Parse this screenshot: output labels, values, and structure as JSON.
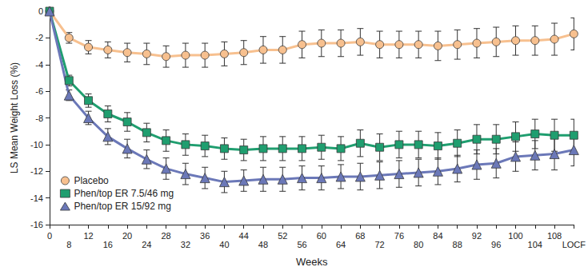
{
  "chart_data": {
    "type": "line",
    "x_label": "Weeks",
    "y_label": "LS Mean Weight Loss (%)",
    "categories": [
      "0",
      "8",
      "12",
      "16",
      "20",
      "24",
      "28",
      "32",
      "36",
      "40",
      "44",
      "48",
      "52",
      "56",
      "60",
      "64",
      "68",
      "72",
      "76",
      "80",
      "84",
      "88",
      "92",
      "96",
      "100",
      "104",
      "108",
      "LOCF"
    ],
    "ylim": [
      -16,
      0
    ],
    "yticks": [
      -16,
      -14,
      -12,
      -10,
      -8,
      -6,
      -4,
      -2,
      0
    ],
    "grid": false,
    "legend": "lower left",
    "series": [
      {
        "name": "Placebo",
        "color": "#f7c08f",
        "marker": "circle",
        "values": [
          0,
          -2.0,
          -2.7,
          -2.9,
          -3.1,
          -3.2,
          -3.4,
          -3.3,
          -3.3,
          -3.2,
          -3.1,
          -2.9,
          -2.9,
          -2.5,
          -2.4,
          -2.4,
          -2.3,
          -2.5,
          -2.5,
          -2.5,
          -2.6,
          -2.5,
          -2.4,
          -2.3,
          -2.2,
          -2.2,
          -2.1,
          -1.7
        ],
        "errors": [
          0,
          0.4,
          0.5,
          0.6,
          0.7,
          0.8,
          0.8,
          0.9,
          0.9,
          0.9,
          0.9,
          1.0,
          1.0,
          1.0,
          1.0,
          1.0,
          1.0,
          1.0,
          1.0,
          1.0,
          1.1,
          1.1,
          1.1,
          1.1,
          1.1,
          1.1,
          1.2,
          1.2
        ]
      },
      {
        "name": "Phen/top ER 7.5/46 mg",
        "color": "#1f9e6f",
        "marker": "square",
        "values": [
          0,
          -5.2,
          -6.7,
          -7.7,
          -8.3,
          -9.1,
          -9.7,
          -10.0,
          -10.1,
          -10.3,
          -10.4,
          -10.3,
          -10.3,
          -10.3,
          -10.2,
          -10.3,
          -9.9,
          -10.2,
          -10.0,
          -10.0,
          -10.1,
          -9.9,
          -9.6,
          -9.6,
          -9.4,
          -9.2,
          -9.3,
          -9.3
        ],
        "errors": [
          0,
          0.4,
          0.5,
          0.6,
          0.7,
          0.7,
          0.8,
          0.8,
          0.8,
          0.8,
          0.8,
          0.9,
          0.9,
          0.9,
          0.9,
          0.9,
          1.0,
          1.0,
          1.0,
          1.0,
          1.0,
          1.0,
          1.1,
          1.1,
          1.1,
          1.1,
          1.2,
          1.2
        ]
      },
      {
        "name": "Phen/top ER 15/92 mg",
        "color": "#6b78b8",
        "marker": "triangle",
        "values": [
          0,
          -6.3,
          -8.0,
          -9.4,
          -10.3,
          -11.1,
          -11.8,
          -12.2,
          -12.5,
          -12.8,
          -12.7,
          -12.6,
          -12.6,
          -12.5,
          -12.5,
          -12.4,
          -12.4,
          -12.3,
          -12.2,
          -12.1,
          -12.0,
          -11.8,
          -11.5,
          -11.4,
          -10.9,
          -10.8,
          -10.7,
          -10.4
        ],
        "errors": [
          0,
          0.4,
          0.5,
          0.6,
          0.7,
          0.7,
          0.8,
          0.8,
          0.8,
          0.8,
          0.8,
          0.9,
          0.9,
          0.9,
          0.9,
          0.9,
          1.0,
          1.0,
          1.0,
          1.0,
          1.0,
          1.0,
          1.1,
          1.1,
          1.1,
          1.1,
          1.2,
          1.2
        ]
      }
    ]
  }
}
